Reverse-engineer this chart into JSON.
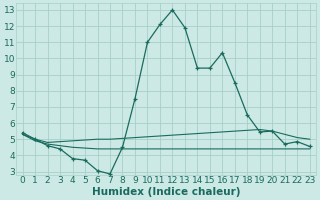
{
  "title": "",
  "xlabel": "Humidex (Indice chaleur)",
  "ylabel": "",
  "bg_color": "#cce9e5",
  "grid_color": "#a8cfc9",
  "line_color": "#1a6b5e",
  "xlim": [
    -0.5,
    23.5
  ],
  "ylim": [
    2.8,
    13.4
  ],
  "xticks": [
    0,
    1,
    2,
    3,
    4,
    5,
    6,
    7,
    8,
    9,
    10,
    11,
    12,
    13,
    14,
    15,
    16,
    17,
    18,
    19,
    20,
    21,
    22,
    23
  ],
  "yticks": [
    3,
    4,
    5,
    6,
    7,
    8,
    9,
    10,
    11,
    12,
    13
  ],
  "line1_x": [
    0,
    1,
    2,
    3,
    4,
    5,
    6,
    7,
    8,
    9,
    10,
    11,
    12,
    13,
    14,
    15,
    16,
    17,
    18,
    19,
    20,
    21,
    22,
    23
  ],
  "line1_y": [
    5.4,
    5.0,
    4.6,
    4.4,
    3.8,
    3.7,
    3.05,
    2.85,
    4.5,
    7.5,
    11.0,
    12.1,
    13.0,
    11.9,
    9.4,
    9.4,
    10.35,
    8.5,
    6.5,
    5.45,
    5.5,
    4.7,
    4.85,
    4.55
  ],
  "line2_x": [
    0,
    1,
    2,
    3,
    4,
    5,
    6,
    7,
    8,
    9,
    10,
    11,
    12,
    13,
    14,
    15,
    16,
    17,
    18,
    19,
    20,
    21,
    22,
    23
  ],
  "line2_y": [
    5.3,
    5.0,
    4.8,
    4.85,
    4.9,
    4.95,
    5.0,
    5.0,
    5.05,
    5.1,
    5.15,
    5.2,
    5.25,
    5.3,
    5.35,
    5.4,
    5.45,
    5.5,
    5.55,
    5.6,
    5.5,
    5.3,
    5.1,
    5.0
  ],
  "line3_x": [
    0,
    1,
    2,
    3,
    4,
    5,
    6,
    7,
    8,
    9,
    10,
    11,
    12,
    13,
    14,
    15,
    16,
    17,
    18,
    19,
    20,
    21,
    22,
    23
  ],
  "line3_y": [
    5.3,
    4.9,
    4.7,
    4.6,
    4.5,
    4.45,
    4.4,
    4.4,
    4.4,
    4.4,
    4.4,
    4.4,
    4.4,
    4.4,
    4.4,
    4.4,
    4.4,
    4.4,
    4.4,
    4.4,
    4.4,
    4.4,
    4.4,
    4.4
  ],
  "font_color": "#1a6b5e",
  "tick_fontsize": 6.5,
  "label_fontsize": 7.5
}
